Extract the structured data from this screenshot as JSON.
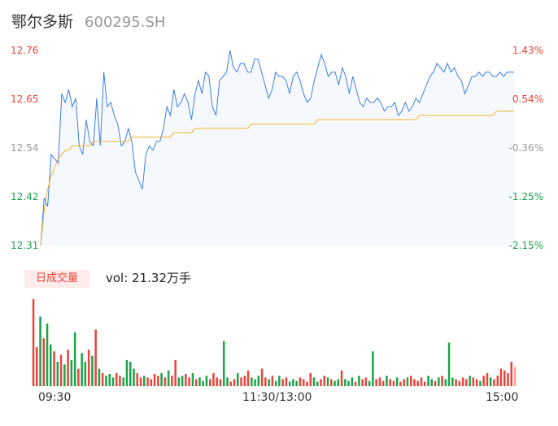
{
  "header": {
    "name": "鄂尔多斯",
    "code": "600295.SH"
  },
  "colors": {
    "up": "#e8443a",
    "down": "#1aa34a",
    "neutral": "#999999",
    "price_line": "#3d7fe0",
    "avg_line": "#f0b429"
  },
  "volume_panel": {
    "badge": "日成交量",
    "vol_label": "vol: 21.32万手"
  },
  "chart_data": [
    {
      "type": "line",
      "title": "",
      "x_ticks": [
        "09:30",
        "11:30/13:00",
        "15:00"
      ],
      "y_ticks_price": [
        "12.76",
        "12.65",
        "12.54",
        "12.42",
        "12.31"
      ],
      "y_ticks_pct": [
        "1.43%",
        "0.54%",
        "-0.36%",
        "-1.25%",
        "-2.15%"
      ],
      "ylim": [
        12.31,
        12.76
      ],
      "series": [
        {
          "name": "",
          "values": [
            12.31,
            12.42,
            12.4,
            12.52,
            12.51,
            12.5,
            12.66,
            12.64,
            12.67,
            12.63,
            12.65,
            12.54,
            12.52,
            12.6,
            12.55,
            12.54,
            12.65,
            12.54,
            12.71,
            12.63,
            12.64,
            12.61,
            12.59,
            12.54,
            12.55,
            12.58,
            12.55,
            12.48,
            12.46,
            12.44,
            12.52,
            12.54,
            12.53,
            12.55,
            12.55,
            12.58,
            12.63,
            12.61,
            12.67,
            12.63,
            12.64,
            12.66,
            12.64,
            12.6,
            12.66,
            12.69,
            12.66,
            12.71,
            12.7,
            12.63,
            12.61,
            12.69,
            12.7,
            12.71,
            12.76,
            12.72,
            12.71,
            12.73,
            12.73,
            12.71,
            12.71,
            12.74,
            12.74,
            12.71,
            12.68,
            12.65,
            12.67,
            12.71,
            12.7,
            12.7,
            12.69,
            12.66,
            12.7,
            12.71,
            12.69,
            12.66,
            12.64,
            12.65,
            12.69,
            12.72,
            12.75,
            12.73,
            12.7,
            12.71,
            12.71,
            12.68,
            12.72,
            12.7,
            12.66,
            12.7,
            12.67,
            12.64,
            12.63,
            12.65,
            12.64,
            12.64,
            12.65,
            12.64,
            12.62,
            12.63,
            12.63,
            12.64,
            12.61,
            12.62,
            12.64,
            12.62,
            12.63,
            12.65,
            12.64,
            12.66,
            12.68,
            12.7,
            12.71,
            12.73,
            12.72,
            12.71,
            12.73,
            12.71,
            12.72,
            12.7,
            12.69,
            12.66,
            12.68,
            12.7,
            12.7,
            12.71,
            12.7,
            12.71,
            12.71,
            12.7,
            12.7,
            12.71,
            12.7,
            12.71,
            12.71,
            12.71
          ]
        },
        {
          "name": "",
          "values": [
            12.31,
            12.39,
            12.44,
            12.47,
            12.49,
            12.51,
            12.52,
            12.53,
            12.53,
            12.54,
            12.54,
            12.54,
            12.54,
            12.54,
            12.54,
            12.55,
            12.55,
            12.55,
            12.55,
            12.55,
            12.55,
            12.55,
            12.55,
            12.55,
            12.55,
            12.55,
            12.56,
            12.56,
            12.56,
            12.56,
            12.56,
            12.56,
            12.56,
            12.56,
            12.56,
            12.56,
            12.56,
            12.56,
            12.57,
            12.57,
            12.57,
            12.57,
            12.57,
            12.57,
            12.58,
            12.58,
            12.58,
            12.58,
            12.58,
            12.58,
            12.58,
            12.58,
            12.58,
            12.58,
            12.58,
            12.58,
            12.58,
            12.58,
            12.58,
            12.58,
            12.59,
            12.59,
            12.59,
            12.59,
            12.59,
            12.59,
            12.59,
            12.59,
            12.59,
            12.59,
            12.59,
            12.59,
            12.59,
            12.59,
            12.59,
            12.59,
            12.59,
            12.59,
            12.59,
            12.6,
            12.6,
            12.6,
            12.6,
            12.6,
            12.6,
            12.6,
            12.6,
            12.6,
            12.6,
            12.6,
            12.6,
            12.6,
            12.6,
            12.6,
            12.6,
            12.6,
            12.6,
            12.6,
            12.6,
            12.6,
            12.6,
            12.6,
            12.6,
            12.6,
            12.6,
            12.6,
            12.6,
            12.6,
            12.61,
            12.61,
            12.61,
            12.61,
            12.61,
            12.61,
            12.61,
            12.61,
            12.61,
            12.61,
            12.61,
            12.61,
            12.61,
            12.61,
            12.61,
            12.61,
            12.61,
            12.61,
            12.61,
            12.61,
            12.61,
            12.61,
            12.62,
            12.62,
            12.62,
            12.62,
            12.62,
            12.62
          ]
        }
      ]
    },
    {
      "type": "bar",
      "title": "",
      "volume": [
        100,
        45,
        80,
        55,
        72,
        48,
        40,
        28,
        36,
        25,
        42,
        30,
        62,
        20,
        38,
        28,
        42,
        35,
        65,
        20,
        15,
        12,
        14,
        10,
        15,
        12,
        10,
        30,
        28,
        20,
        15,
        10,
        12,
        10,
        8,
        14,
        12,
        15,
        10,
        18,
        12,
        30,
        10,
        12,
        14,
        10,
        15,
        8,
        10,
        6,
        12,
        8,
        15,
        10,
        8,
        52,
        10,
        5,
        8,
        15,
        10,
        12,
        18,
        10,
        8,
        12,
        20,
        10,
        8,
        12,
        6,
        12,
        8,
        10,
        5,
        8,
        6,
        10,
        8,
        5,
        15,
        10,
        5,
        8,
        12,
        10,
        8,
        6,
        8,
        18,
        8,
        6,
        10,
        5,
        12,
        8,
        10,
        6,
        40,
        8,
        10,
        6,
        12,
        8,
        6,
        10,
        5,
        8,
        10,
        12,
        8,
        6,
        10,
        5,
        12,
        8,
        6,
        10,
        12,
        8,
        50,
        10,
        8,
        6,
        10,
        8,
        12,
        10,
        8,
        6,
        12,
        15,
        10,
        8,
        12,
        20,
        18,
        15,
        28,
        22
      ]
    }
  ]
}
